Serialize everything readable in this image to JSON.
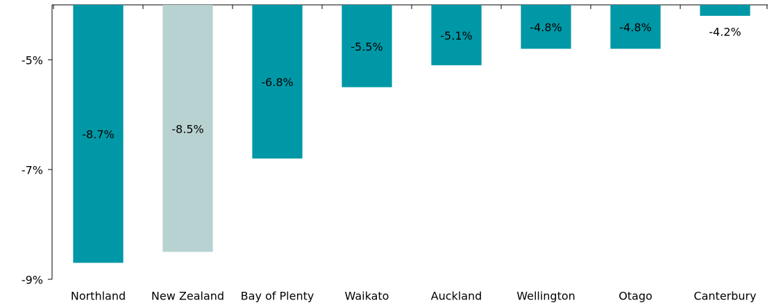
{
  "chart_data": {
    "type": "bar",
    "categories": [
      "Northland",
      "New Zealand",
      "Bay of Plenty",
      "Waikato",
      "Auckland",
      "Wellington",
      "Otago",
      "Canterbury"
    ],
    "values": [
      -8.7,
      -8.5,
      -6.8,
      -5.5,
      -5.1,
      -4.8,
      -4.8,
      -4.2
    ],
    "value_labels": [
      "-8.7%",
      "-8.5%",
      "-6.8%",
      "-5.5%",
      "-5.1%",
      "-4.8%",
      "-4.8%",
      "-4.2%"
    ],
    "colors": [
      "#0098a6",
      "#b8d2d2",
      "#0098a6",
      "#0098a6",
      "#0098a6",
      "#0098a6",
      "#0098a6",
      "#0098a6"
    ],
    "ylim": [
      -9,
      -4
    ],
    "yticks": [
      {
        "value": -5,
        "label": "-5%"
      },
      {
        "value": -7,
        "label": "-7%"
      },
      {
        "value": -9,
        "label": "-9%"
      }
    ],
    "grid": false
  }
}
